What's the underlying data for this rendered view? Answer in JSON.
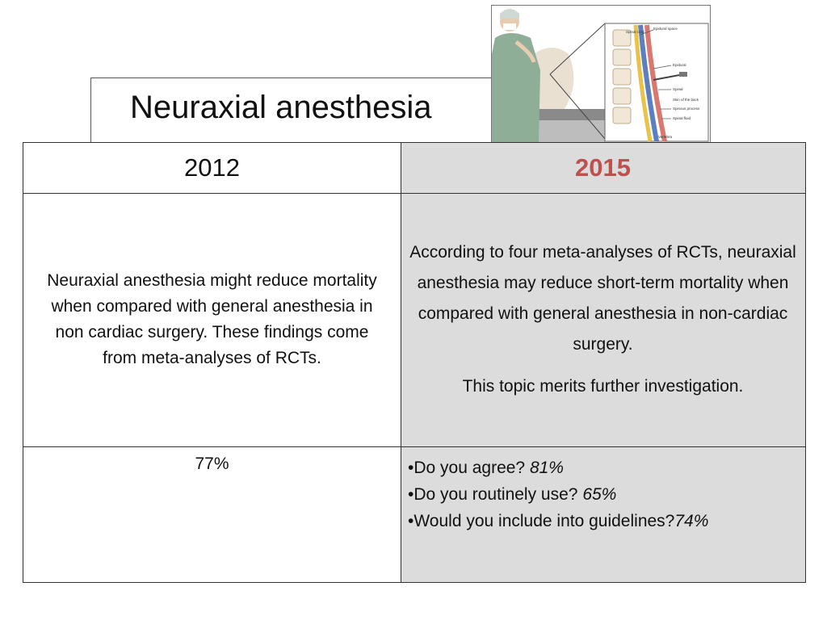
{
  "slide": {
    "title": "Neuraxial anesthesia",
    "illustration": {
      "icon": "spinal-anesthesia-illustration",
      "labels": [
        "Spinal cord",
        "Epidural space",
        "Epidural",
        "Spinal",
        "Skin of the back",
        "Spinous process",
        "Spinal fluid",
        "Vertebra"
      ]
    },
    "table": {
      "col_2012": {
        "header": "2012",
        "statement": "Neuraxial anesthesia might reduce mortality when compared with general anesthesia in non cardiac surgery. These findings come from meta-analyses of RCTs.",
        "agreement": "77%"
      },
      "col_2015": {
        "header": "2015",
        "header_color": "#c0504d",
        "statement_p1": "According to four meta-analyses of RCTs, neuraxial anesthesia may reduce short-term mortality when compared with general anesthesia in non-cardiac surgery.",
        "statement_p2": "This topic merits further investigation.",
        "survey": [
          {
            "question": "•Do you agree?  ",
            "value": "81%"
          },
          {
            "question": "•Do you routinely use? ",
            "value": "65%"
          },
          {
            "question": "•Would you include into guidelines?",
            "value": "74%"
          }
        ]
      }
    }
  }
}
